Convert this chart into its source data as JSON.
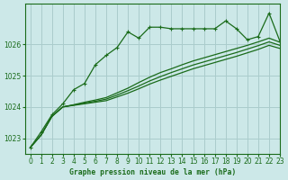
{
  "title": "Graphe pression niveau de la mer (hPa)",
  "background_color": "#cce8e8",
  "grid_color": "#aacccc",
  "line_color": "#1a6b1a",
  "xlim": [
    -0.5,
    23
  ],
  "ylim": [
    1022.5,
    1027.3
  ],
  "yticks": [
    1023,
    1024,
    1025,
    1026
  ],
  "xticks": [
    0,
    1,
    2,
    3,
    4,
    5,
    6,
    7,
    8,
    9,
    10,
    11,
    12,
    13,
    14,
    15,
    16,
    17,
    18,
    19,
    20,
    21,
    22,
    23
  ],
  "series1_x": [
    0,
    1,
    2,
    3,
    4,
    5,
    6,
    7,
    8,
    9,
    10,
    11,
    12,
    13,
    14,
    15,
    16,
    17,
    18,
    19,
    20,
    21,
    22,
    23
  ],
  "series1": [
    1022.7,
    1023.2,
    1023.75,
    1024.1,
    1024.55,
    1024.75,
    1025.35,
    1025.65,
    1025.9,
    1026.4,
    1026.2,
    1026.55,
    1026.55,
    1026.5,
    1026.5,
    1026.5,
    1026.5,
    1026.5,
    1026.75,
    1026.5,
    1026.15,
    1026.25,
    1027.0,
    1026.1
  ],
  "series2": [
    1022.7,
    1023.1,
    1023.7,
    1024.0,
    1024.07,
    1024.15,
    1024.22,
    1024.3,
    1024.45,
    1024.6,
    1024.78,
    1024.95,
    1025.1,
    1025.22,
    1025.35,
    1025.47,
    1025.57,
    1025.67,
    1025.77,
    1025.87,
    1025.97,
    1026.08,
    1026.2,
    1026.07
  ],
  "series3": [
    1022.7,
    1023.1,
    1023.7,
    1024.0,
    1024.06,
    1024.12,
    1024.18,
    1024.25,
    1024.38,
    1024.52,
    1024.67,
    1024.83,
    1024.97,
    1025.1,
    1025.22,
    1025.34,
    1025.44,
    1025.54,
    1025.64,
    1025.74,
    1025.85,
    1025.96,
    1026.08,
    1025.97
  ],
  "series4": [
    1022.7,
    1023.1,
    1023.7,
    1024.0,
    1024.05,
    1024.1,
    1024.15,
    1024.2,
    1024.32,
    1024.44,
    1024.58,
    1024.73,
    1024.86,
    1024.98,
    1025.1,
    1025.22,
    1025.32,
    1025.42,
    1025.52,
    1025.62,
    1025.73,
    1025.84,
    1025.97,
    1025.87
  ]
}
